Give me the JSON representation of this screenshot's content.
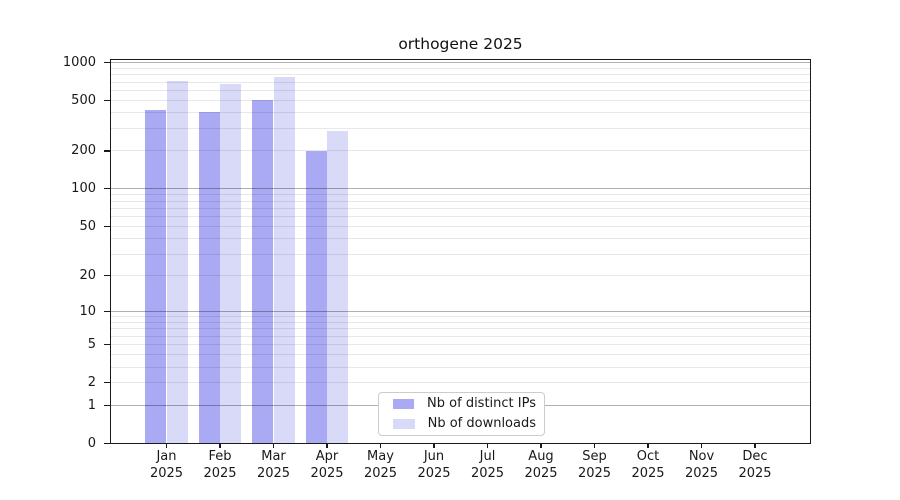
{
  "title": "orthogene 2025",
  "chart_data": {
    "type": "bar",
    "title": "orthogene 2025",
    "categories": [
      "Jan 2025",
      "Feb 2025",
      "Mar 2025",
      "Apr 2025",
      "May 2025",
      "Jun 2025",
      "Jul 2025",
      "Aug 2025",
      "Sep 2025",
      "Oct 2025",
      "Nov 2025",
      "Dec 2025"
    ],
    "months": [
      "Jan",
      "Feb",
      "Mar",
      "Apr",
      "May",
      "Jun",
      "Jul",
      "Aug",
      "Sep",
      "Oct",
      "Nov",
      "Dec"
    ],
    "year": "2025",
    "series": [
      {
        "name": "Nb of distinct IPs",
        "color": "#a9a9f4",
        "values": [
          420,
          408,
          507,
          200,
          0,
          0,
          0,
          0,
          0,
          0,
          0,
          0
        ]
      },
      {
        "name": "Nb of downloads",
        "color": "#d9d9f8",
        "values": [
          717,
          674,
          760,
          287,
          0,
          0,
          0,
          0,
          0,
          0,
          0,
          0
        ]
      }
    ],
    "xlabel": "",
    "ylabel": "",
    "yscale": "log1p",
    "ylim": [
      0,
      1053
    ],
    "yticks": [
      0,
      1,
      2,
      5,
      10,
      20,
      50,
      100,
      200,
      500,
      1000
    ],
    "grid": "both",
    "legend_position": "inside lower center"
  },
  "colors": {
    "grid_major": "#b0b0b0",
    "grid_minor": "#e9e9e9",
    "axis": "#1a1a1a",
    "background": "#ffffff",
    "text": "#191919"
  }
}
